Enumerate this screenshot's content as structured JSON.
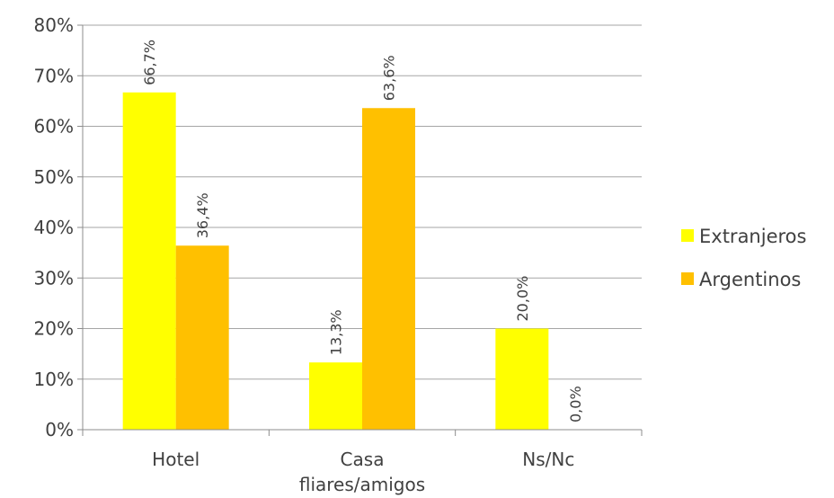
{
  "chart_data": {
    "type": "bar",
    "categories": [
      [
        "Hotel"
      ],
      [
        "Casa",
        "fliares/amigos"
      ],
      [
        "Ns/Nc"
      ]
    ],
    "series": [
      {
        "name": "Extranjeros",
        "values": [
          66.7,
          13.3,
          20.0
        ],
        "labels": [
          "66,7%",
          "13,3%",
          "20,0%"
        ],
        "color": "#FFFF00"
      },
      {
        "name": "Argentinos",
        "values": [
          36.4,
          63.6,
          0.0
        ],
        "labels": [
          "36,4%",
          "63,6%",
          "0,0%"
        ],
        "color": "#FFC000"
      }
    ],
    "y_ticks": [
      "0%",
      "10%",
      "20%",
      "30%",
      "40%",
      "50%",
      "60%",
      "70%",
      "80%"
    ],
    "ylim": [
      0,
      80
    ],
    "grid": true,
    "legend_position": "right"
  }
}
